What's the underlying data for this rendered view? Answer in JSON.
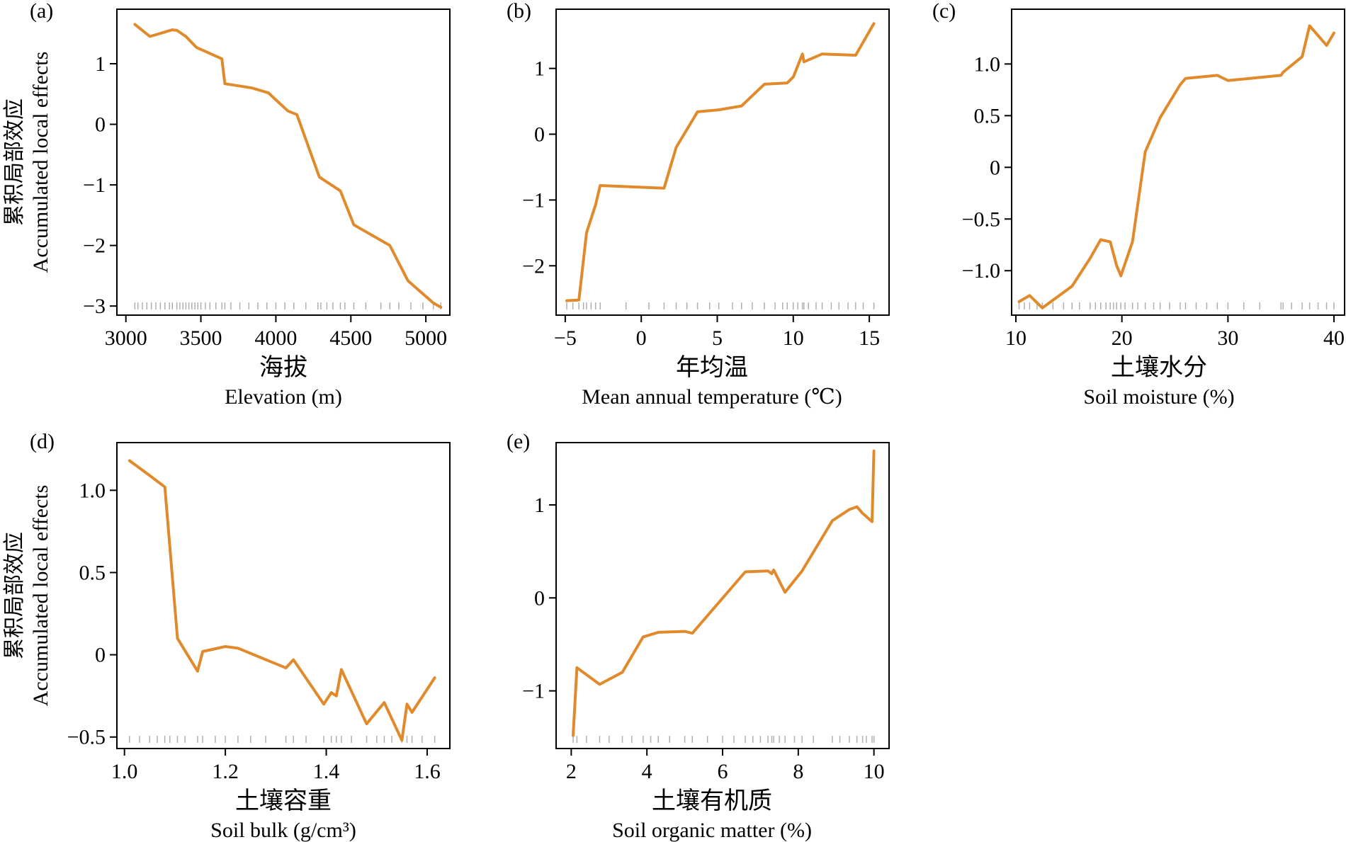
{
  "colors": {
    "line": "#E08A2C",
    "axis": "#000000",
    "rug": "#B0B0B0"
  },
  "ylabel": {
    "cn": "累积局部效应",
    "en": "Accumulated local effects"
  },
  "chart_data": [
    {
      "type": "line",
      "panel_label": "(a)",
      "xlabel_cn": "海拔",
      "xlabel_en": "Elevation (m)",
      "xlim": [
        2940,
        5160
      ],
      "ylim": [
        -3.15,
        1.9
      ],
      "xticks": [
        3000,
        3500,
        4000,
        4500,
        5000
      ],
      "xtick_labels": [
        "3000",
        "3500",
        "4000",
        "4500",
        "5000"
      ],
      "yticks": [
        -3,
        -2,
        -1,
        0,
        1
      ],
      "ytick_labels": [
        "−3",
        "−2",
        "−1",
        "0",
        "1"
      ],
      "series": [
        {
          "x": [
            3060,
            3160,
            3310,
            3340,
            3400,
            3470,
            3640,
            3660,
            3840,
            3950,
            4080,
            4140,
            4290,
            4430,
            4520,
            4760,
            4880,
            5050,
            5100
          ],
          "y": [
            1.65,
            1.45,
            1.56,
            1.55,
            1.45,
            1.27,
            1.08,
            0.67,
            0.6,
            0.52,
            0.22,
            0.16,
            -0.87,
            -1.1,
            -1.66,
            -2.0,
            -2.58,
            -2.95,
            -3.02
          ]
        }
      ],
      "rug_x": [
        3060,
        3080,
        3110,
        3140,
        3170,
        3200,
        3230,
        3260,
        3290,
        3310,
        3340,
        3360,
        3380,
        3400,
        3420,
        3440,
        3460,
        3480,
        3500,
        3530,
        3560,
        3600,
        3640,
        3660,
        3700,
        3760,
        3820,
        3880,
        3940,
        4000,
        4060,
        4120,
        4200,
        4280,
        4300,
        4340,
        4380,
        4430,
        4460,
        4520,
        4600,
        4700,
        4760,
        4820,
        4900,
        4980,
        5050,
        5100
      ]
    },
    {
      "type": "line",
      "panel_label": "(b)",
      "xlabel_cn": "年均温",
      "xlabel_en": "Mean annual temperature (℃)",
      "xlim": [
        -5.6,
        16.3
      ],
      "ylim": [
        -2.75,
        1.9
      ],
      "xticks": [
        -5,
        0,
        5,
        10,
        15
      ],
      "xtick_labels": [
        "−5",
        "0",
        "5",
        "10",
        "15"
      ],
      "yticks": [
        -2,
        -1,
        0,
        1
      ],
      "ytick_labels": [
        "−2",
        "−1",
        "0",
        "1"
      ],
      "series": [
        {
          "x": [
            -4.9,
            -4.1,
            -3.6,
            -3.0,
            -2.7,
            1.5,
            2.3,
            3.7,
            5.1,
            6.6,
            8.1,
            9.6,
            10.0,
            10.6,
            10.7,
            11.9,
            14.1,
            15.3
          ],
          "y": [
            -2.53,
            -2.52,
            -1.5,
            -1.07,
            -0.78,
            -0.82,
            -0.2,
            0.34,
            0.37,
            0.43,
            0.76,
            0.78,
            0.87,
            1.22,
            1.1,
            1.22,
            1.2,
            1.68
          ]
        }
      ],
      "rug_x": [
        -4.9,
        -4.5,
        -4.1,
        -3.8,
        -3.6,
        -3.3,
        -3.0,
        -2.7,
        -1.0,
        0.5,
        1.5,
        2.3,
        3.0,
        3.7,
        4.5,
        5.1,
        6.0,
        6.6,
        7.3,
        8.1,
        8.8,
        9.3,
        9.6,
        10.0,
        10.3,
        10.6,
        10.7,
        11.0,
        11.5,
        11.9,
        12.5,
        13.0,
        13.6,
        14.1,
        14.6,
        15.3
      ]
    },
    {
      "type": "line",
      "panel_label": "(c)",
      "xlabel_cn": "土壤水分",
      "xlabel_en": "Soil moisture (%)",
      "xlim": [
        9.6,
        41.0
      ],
      "ylim": [
        -1.43,
        1.53
      ],
      "xticks": [
        10,
        20,
        30,
        40
      ],
      "xtick_labels": [
        "10",
        "20",
        "30",
        "40"
      ],
      "yticks": [
        -1.0,
        -0.5,
        0,
        0.5,
        1.0
      ],
      "ytick_labels": [
        "−1.0",
        "−0.5",
        "0",
        "0.5",
        "1.0"
      ],
      "series": [
        {
          "x": [
            10.3,
            11.3,
            12.5,
            15.3,
            17.0,
            18.0,
            18.9,
            19.5,
            19.9,
            21.0,
            22.2,
            23.6,
            25.5,
            26.0,
            29.0,
            30.0,
            35.0,
            35.2,
            37.0,
            37.7,
            39.3,
            40.0
          ],
          "y": [
            -1.3,
            -1.24,
            -1.36,
            -1.15,
            -0.88,
            -0.7,
            -0.72,
            -0.95,
            -1.05,
            -0.72,
            0.15,
            0.48,
            0.8,
            0.86,
            0.89,
            0.84,
            0.89,
            0.92,
            1.07,
            1.37,
            1.18,
            1.3
          ]
        }
      ],
      "rug_x": [
        10.3,
        10.8,
        11.3,
        12.0,
        12.5,
        13.5,
        14.5,
        15.3,
        16.0,
        17.0,
        17.5,
        18.0,
        18.5,
        18.9,
        19.2,
        19.5,
        19.9,
        20.3,
        21.0,
        21.5,
        22.2,
        23.0,
        23.6,
        24.5,
        25.5,
        26.0,
        27.0,
        28.0,
        29.0,
        30.0,
        31.5,
        33.0,
        35.0,
        35.2,
        36.0,
        37.0,
        37.7,
        38.5,
        39.3,
        40.0
      ]
    },
    {
      "type": "line",
      "panel_label": "(d)",
      "xlabel_cn": "土壤容重",
      "xlabel_en": "Soil bulk (g/cm³)",
      "xlim": [
        0.985,
        1.645
      ],
      "ylim": [
        -0.57,
        1.29
      ],
      "xticks": [
        1.0,
        1.2,
        1.4,
        1.6
      ],
      "xtick_labels": [
        "1.0",
        "1.2",
        "1.4",
        "1.6"
      ],
      "yticks": [
        -0.5,
        0,
        0.5,
        1.0
      ],
      "ytick_labels": [
        "−0.5",
        "0",
        "0.5",
        "1.0"
      ],
      "series": [
        {
          "x": [
            1.01,
            1.05,
            1.08,
            1.105,
            1.145,
            1.155,
            1.2,
            1.225,
            1.32,
            1.335,
            1.395,
            1.41,
            1.42,
            1.43,
            1.48,
            1.515,
            1.55,
            1.56,
            1.57,
            1.615
          ],
          "y": [
            1.18,
            1.09,
            1.02,
            0.1,
            -0.1,
            0.02,
            0.05,
            0.04,
            -0.08,
            -0.03,
            -0.3,
            -0.23,
            -0.25,
            -0.09,
            -0.42,
            -0.29,
            -0.52,
            -0.3,
            -0.35,
            -0.14
          ]
        }
      ],
      "rug_x": [
        1.01,
        1.03,
        1.05,
        1.065,
        1.08,
        1.09,
        1.105,
        1.12,
        1.145,
        1.155,
        1.18,
        1.2,
        1.225,
        1.25,
        1.28,
        1.32,
        1.335,
        1.36,
        1.395,
        1.41,
        1.42,
        1.43,
        1.45,
        1.48,
        1.5,
        1.515,
        1.53,
        1.55,
        1.56,
        1.57,
        1.59,
        1.615
      ]
    },
    {
      "type": "line",
      "panel_label": "(e)",
      "xlabel_cn": "土壤有机质",
      "xlabel_en": "Soil organic matter (%)",
      "xlim": [
        1.6,
        10.4
      ],
      "ylim": [
        -1.62,
        1.67
      ],
      "xticks": [
        2,
        4,
        6,
        8,
        10
      ],
      "xtick_labels": [
        "2",
        "4",
        "6",
        "8",
        "10"
      ],
      "yticks": [
        -1,
        0,
        1
      ],
      "ytick_labels": [
        "−1",
        "0",
        "1"
      ],
      "series": [
        {
          "x": [
            2.05,
            2.15,
            2.75,
            3.35,
            3.9,
            4.3,
            5.0,
            5.2,
            6.6,
            7.2,
            7.3,
            7.35,
            7.65,
            8.1,
            8.9,
            9.35,
            9.55,
            9.7,
            9.95,
            10.0
          ],
          "y": [
            -1.48,
            -0.75,
            -0.93,
            -0.8,
            -0.42,
            -0.37,
            -0.36,
            -0.38,
            0.28,
            0.29,
            0.26,
            0.3,
            0.06,
            0.29,
            0.83,
            0.95,
            0.98,
            0.91,
            0.82,
            1.58
          ]
        }
      ],
      "rug_x": [
        2.05,
        2.15,
        2.4,
        2.75,
        3.0,
        3.35,
        3.6,
        3.9,
        4.1,
        4.3,
        4.6,
        5.0,
        5.2,
        5.6,
        6.0,
        6.3,
        6.6,
        6.8,
        7.0,
        7.2,
        7.3,
        7.35,
        7.5,
        7.65,
        7.9,
        8.1,
        8.4,
        8.9,
        9.1,
        9.35,
        9.55,
        9.7,
        9.8,
        9.95,
        10.0
      ]
    }
  ]
}
